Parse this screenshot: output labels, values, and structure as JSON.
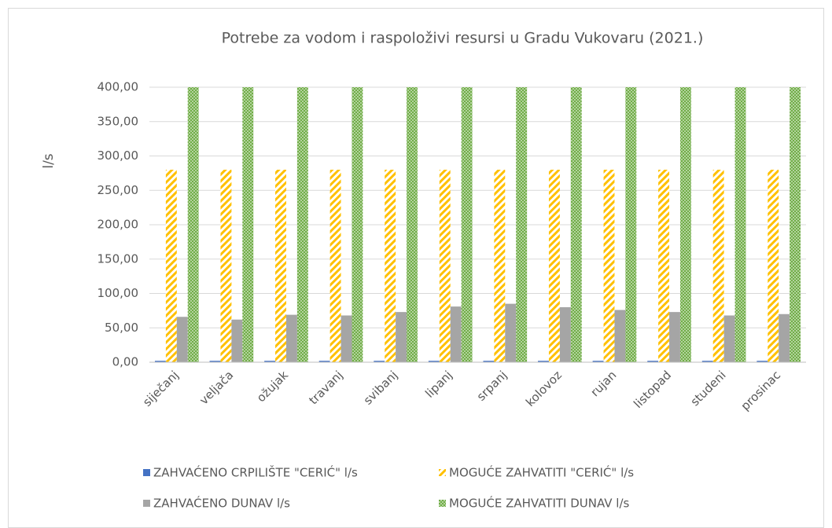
{
  "chart_data": {
    "type": "bar",
    "title": "Potrebe za vodom i raspoloživi resursi u Gradu Vukovaru (2021.)",
    "y_label": "l/s",
    "categories": [
      "siječanj",
      "veljača",
      "ožujak",
      "travanj",
      "svibanj",
      "lipanj",
      "srpanj",
      "kolovoz",
      "rujan",
      "listopad",
      "studeni",
      "prosinac"
    ],
    "series": [
      {
        "name": "ZAHVAĆENO CRPILIŠTE \"CERIĆ\" l/s",
        "color": "#4472c4",
        "values": [
          2,
          2,
          2,
          2,
          2,
          2,
          2,
          2,
          2,
          2,
          2,
          2
        ]
      },
      {
        "name": "MOGUĆE ZAHVATITI \"CERIĆ\" l/s",
        "color": "#ffc000",
        "pattern": "stripes",
        "values": [
          280,
          280,
          280,
          280,
          280,
          280,
          280,
          280,
          280,
          280,
          280,
          280
        ]
      },
      {
        "name": "ZAHVAĆENO DUNAV l/s",
        "color": "#a5a5a5",
        "values": [
          66,
          62,
          69,
          68,
          73,
          81,
          85,
          80,
          76,
          73,
          68,
          70
        ]
      },
      {
        "name": "MOGUĆE ZAHVATITI DUNAV l/s",
        "color": "#70ad47",
        "pattern": "dots",
        "values": [
          400,
          400,
          400,
          400,
          400,
          400,
          400,
          400,
          400,
          400,
          400,
          400
        ]
      }
    ],
    "ylim": [
      0,
      400
    ],
    "yticks": [
      {
        "value": 0,
        "label": "0,00"
      },
      {
        "value": 50,
        "label": "50,00"
      },
      {
        "value": 100,
        "label": "100,00"
      },
      {
        "value": 150,
        "label": "150,00"
      },
      {
        "value": 200,
        "label": "200,00"
      },
      {
        "value": 250,
        "label": "250,00"
      },
      {
        "value": 300,
        "label": "300,00"
      },
      {
        "value": 350,
        "label": "350,00"
      },
      {
        "value": 400,
        "label": "400,00"
      }
    ],
    "grid": true
  }
}
